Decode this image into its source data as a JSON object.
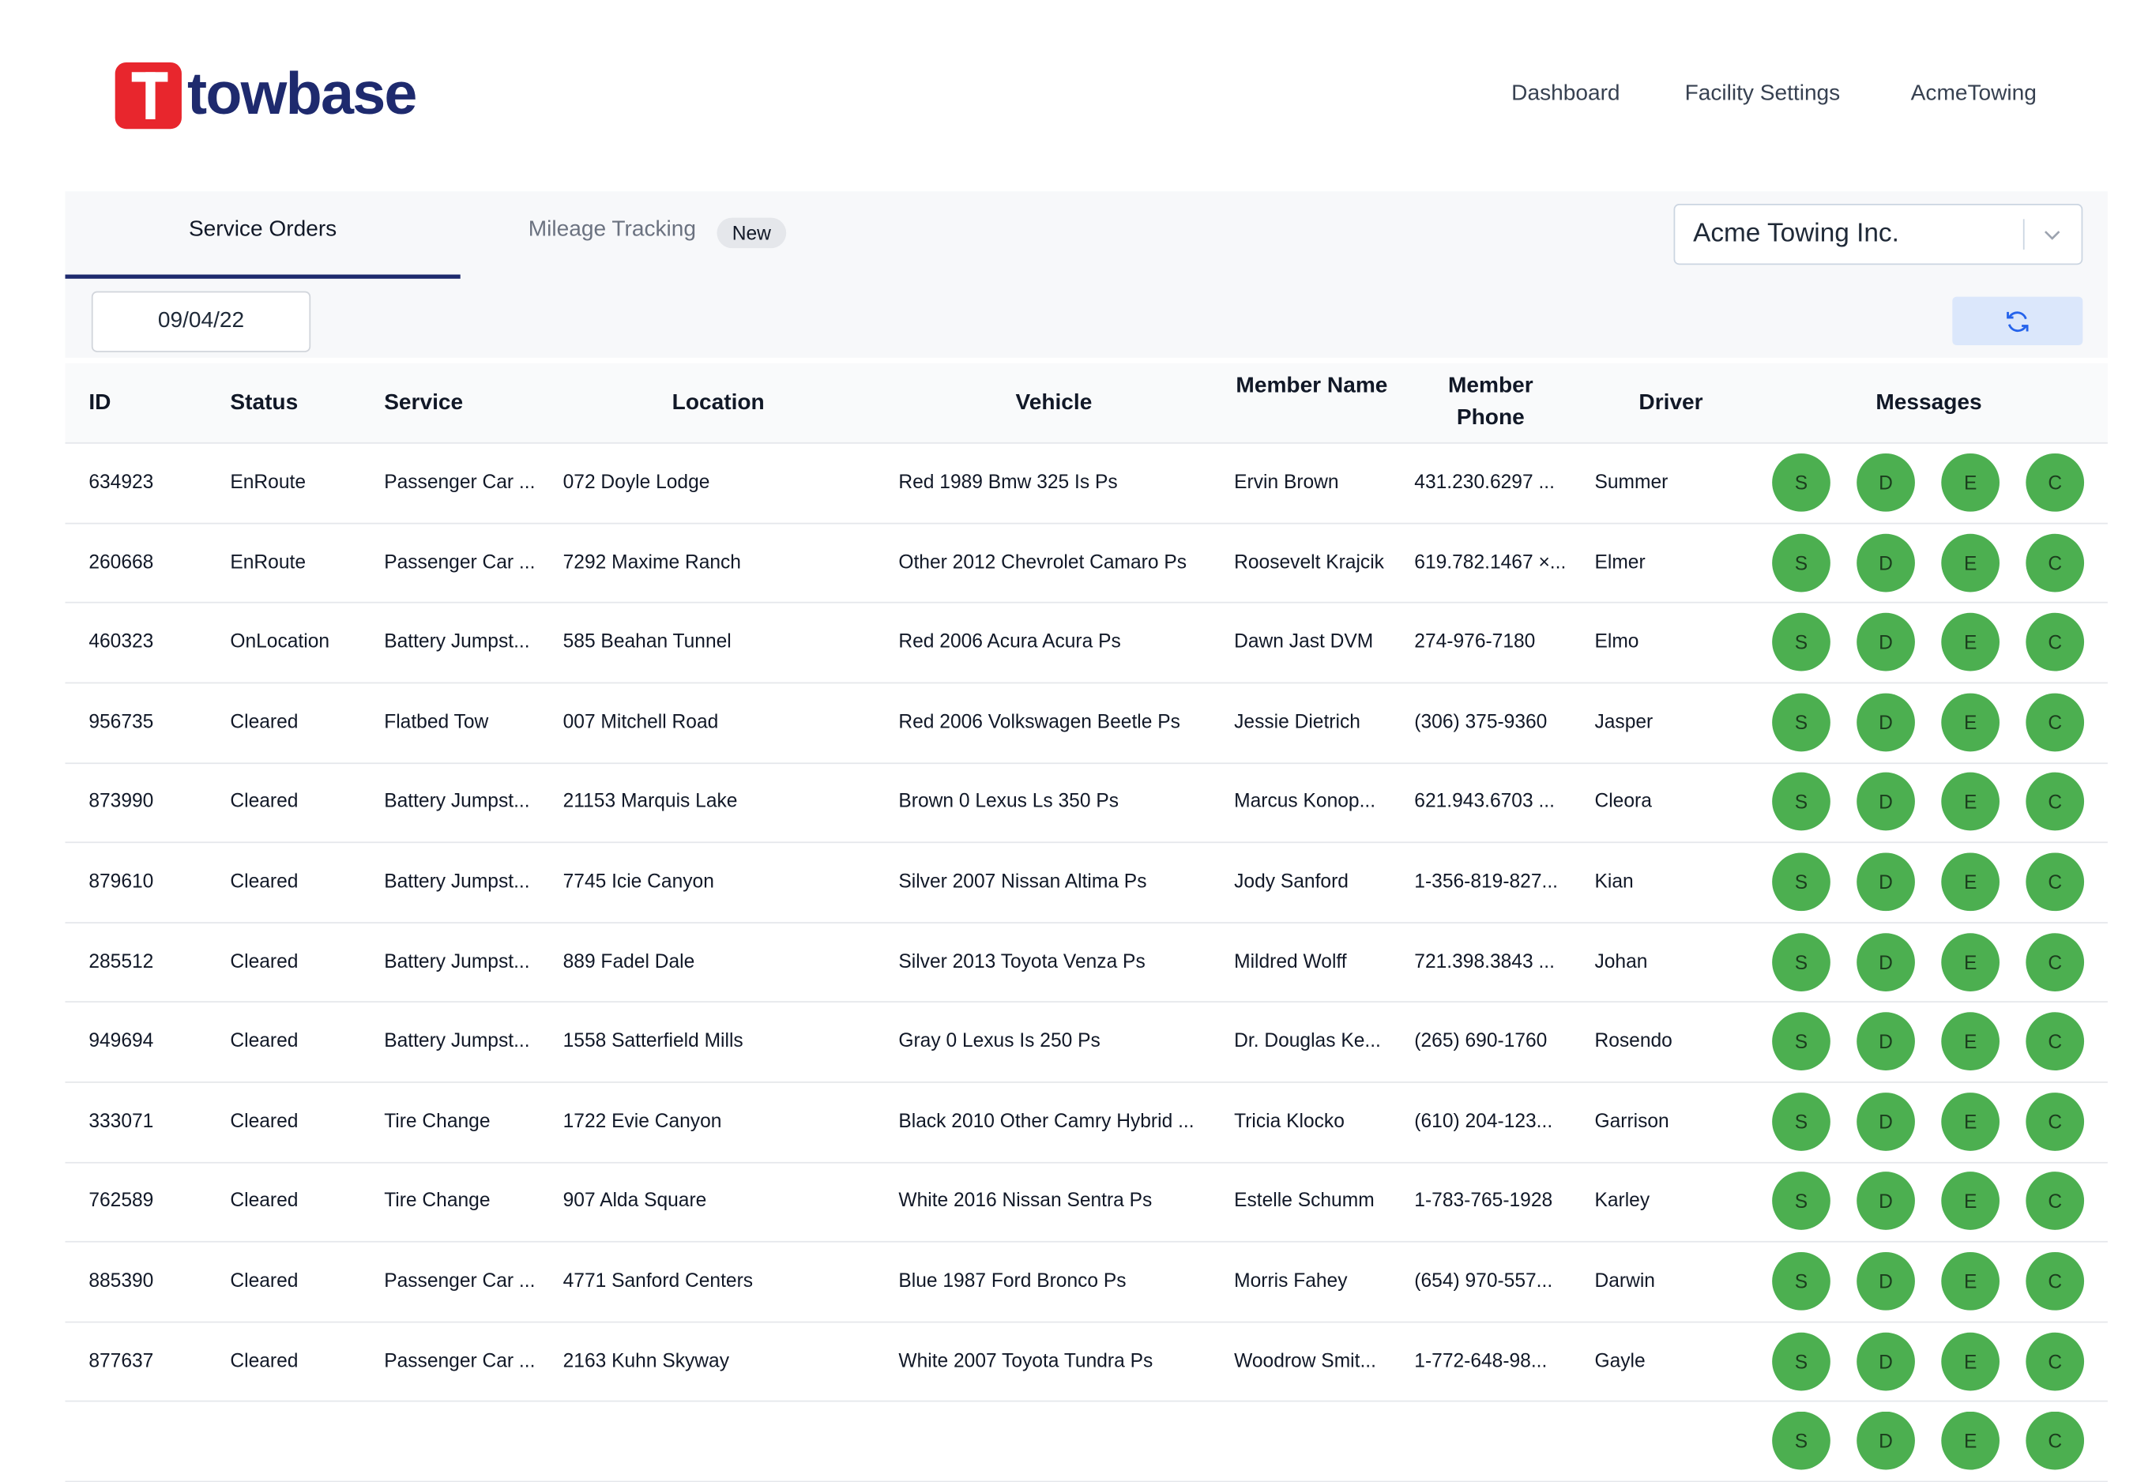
{
  "header": {
    "logo": "towbase",
    "nav": [
      "Dashboard",
      "Facility Settings",
      "AcmeTowing"
    ]
  },
  "tabs": {
    "items": [
      "Service Orders",
      "Mileage Tracking"
    ],
    "badge": "New"
  },
  "company_select": "Acme Towing Inc.",
  "date": "09/04/22",
  "table": {
    "columns": [
      "ID",
      "Status",
      "Service",
      "Location",
      "Vehicle",
      "Member Name",
      "Member Phone",
      "Driver",
      "Messages"
    ],
    "message_buttons": [
      "S",
      "D",
      "E",
      "C"
    ],
    "rows": [
      [
        "634923",
        "EnRoute",
        "Passenger Car ...",
        "072 Doyle Lodge",
        "Red 1989 Bmw 325 Is Ps",
        "Ervin Brown",
        "431.230.6297 ...",
        "Summer"
      ],
      [
        "260668",
        "EnRoute",
        "Passenger Car ...",
        "7292 Maxime Ranch",
        "Other 2012 Chevrolet Camaro Ps",
        "Roosevelt Krajcik",
        "619.782.1467 ×...",
        "Elmer"
      ],
      [
        "460323",
        "OnLocation",
        "Battery Jumpst...",
        "585 Beahan Tunnel",
        "Red 2006 Acura Acura Ps",
        "Dawn Jast DVM",
        "274-976-7180",
        "Elmo"
      ],
      [
        "956735",
        "Cleared",
        "Flatbed Tow",
        "007 Mitchell Road",
        "Red 2006 Volkswagen Beetle Ps",
        "Jessie Dietrich",
        "(306) 375-9360",
        "Jasper"
      ],
      [
        "873990",
        "Cleared",
        "Battery Jumpst...",
        "21153 Marquis Lake",
        "Brown 0 Lexus Ls 350 Ps",
        "Marcus Konop...",
        "621.943.6703 ...",
        "Cleora"
      ],
      [
        "879610",
        "Cleared",
        "Battery Jumpst...",
        "7745 Icie Canyon",
        "Silver 2007 Nissan Altima Ps",
        "Jody Sanford",
        "1-356-819-827...",
        "Kian"
      ],
      [
        "285512",
        "Cleared",
        "Battery Jumpst...",
        "889 Fadel Dale",
        "Silver 2013 Toyota Venza Ps",
        "Mildred Wolff",
        "721.398.3843 ...",
        "Johan"
      ],
      [
        "949694",
        "Cleared",
        "Battery Jumpst...",
        "1558 Satterfield Mills",
        "Gray 0 Lexus Is 250 Ps",
        "Dr. Douglas Ke...",
        "(265) 690-1760",
        "Rosendo"
      ],
      [
        "333071",
        "Cleared",
        "Tire Change",
        "1722 Evie Canyon",
        "Black 2010 Other Camry Hybrid ...",
        "Tricia Klocko",
        "(610) 204-123...",
        "Garrison"
      ],
      [
        "762589",
        "Cleared",
        "Tire Change",
        "907 Alda Square",
        "White 2016 Nissan Sentra Ps",
        "Estelle Schumm",
        "1-783-765-1928",
        "Karley"
      ],
      [
        "885390",
        "Cleared",
        "Passenger Car ...",
        "4771 Sanford Centers",
        "Blue 1987 Ford Bronco Ps",
        "Morris Fahey",
        "(654) 970-557...",
        "Darwin"
      ],
      [
        "877637",
        "Cleared",
        "Passenger Car ...",
        "2163 Kuhn Skyway",
        "White 2007 Toyota Tundra Ps",
        "Woodrow Smit...",
        "1-772-648-98...",
        "Gayle"
      ]
    ]
  }
}
